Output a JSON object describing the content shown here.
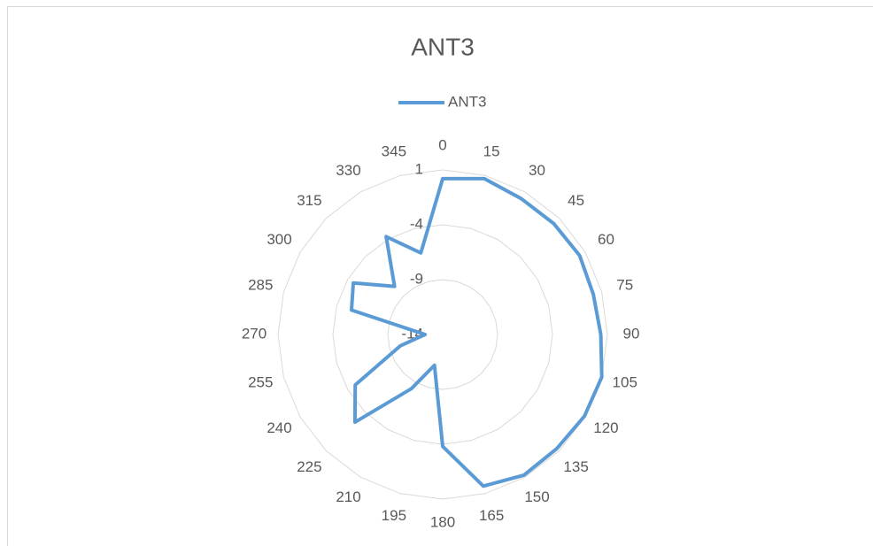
{
  "chart_data": {
    "type": "radar",
    "title": "ANT3",
    "categories": [
      "0",
      "15",
      "30",
      "45",
      "60",
      "75",
      "90",
      "105",
      "120",
      "135",
      "150",
      "165",
      "180",
      "195",
      "210",
      "225",
      "240",
      "255",
      "270",
      "285",
      "300",
      "315",
      "330",
      "345"
    ],
    "series": [
      {
        "name": "ANT3",
        "color": "#5b9bd5",
        "values": [
          0.2,
          0.7,
          0.3,
          0.3,
          0.4,
          0.2,
          0.4,
          1.0,
          0.9,
          0.7,
          0.8,
          0.3,
          -3.8,
          -11.1,
          -8.3,
          -2.7,
          -4.8,
          -10,
          -12.4,
          -5.4,
          -4.6,
          -7.8,
          -3.7,
          -6.3
        ]
      }
    ],
    "ylim": [
      -14,
      1
    ],
    "yticks": [
      -14,
      -9,
      -4,
      1
    ],
    "grid": true,
    "legend": "top"
  }
}
